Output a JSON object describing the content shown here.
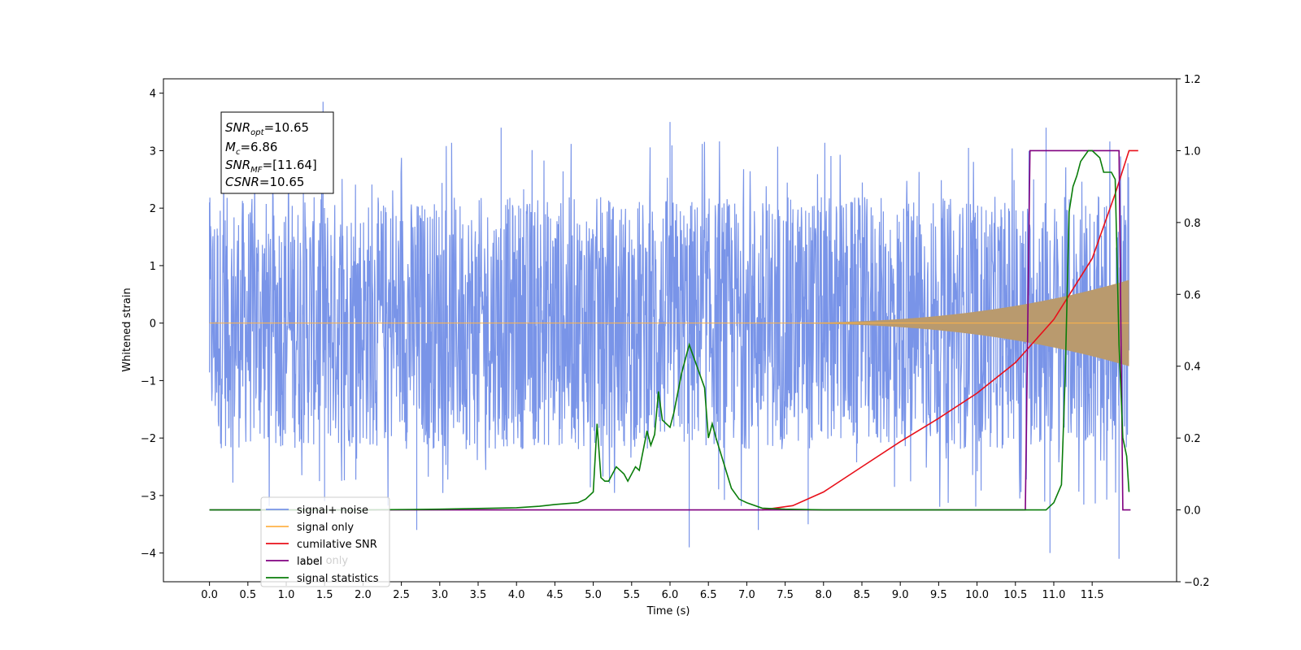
{
  "chart_data": {
    "type": "line",
    "xlabel": "Time (s)",
    "ylabel": "Whitened strain",
    "xlim": [
      -0.6,
      12.6
    ],
    "ylim": [
      -4.5,
      4.25
    ],
    "y2lim": [
      -0.2,
      1.2
    ],
    "xticks": [
      0.0,
      0.5,
      1.0,
      1.5,
      2.0,
      2.5,
      3.0,
      3.5,
      4.0,
      4.5,
      5.0,
      5.5,
      6.0,
      6.5,
      7.0,
      7.5,
      8.0,
      8.5,
      9.0,
      9.5,
      10.0,
      10.5,
      11.0,
      11.5
    ],
    "xtick_labels": [
      "0.0",
      "0.5",
      "1.0",
      "1.5",
      "2.0",
      "2.5",
      "3.0",
      "3.5",
      "4.0",
      "4.5",
      "5.0",
      "5.5",
      "6.0",
      "6.5",
      "7.0",
      "7.5",
      "8.0",
      "8.5",
      "9.0",
      "9.5",
      "10.0",
      "10.5",
      "11.0",
      "11.5"
    ],
    "yticks": [
      -4,
      -3,
      -2,
      -1,
      0,
      1,
      2,
      3,
      4
    ],
    "ytick_labels": [
      "−4",
      "−3",
      "−2",
      "−1",
      "0",
      "1",
      "2",
      "3",
      "4"
    ],
    "y2ticks": [
      -0.2,
      0.0,
      0.2,
      0.4,
      0.6,
      0.8,
      1.0,
      1.2
    ],
    "y2tick_labels": [
      "−0.2",
      "0.0",
      "0.2",
      "0.4",
      "0.6",
      "0.8",
      "1.0",
      "1.2"
    ],
    "grid": false,
    "legend_position": "bottom-left",
    "textbox": {
      "lines": [
        {
          "main": "SNR",
          "sub": "opt",
          "rest": "=10.65"
        },
        {
          "main": "M",
          "sub": "c",
          "rest": "=6.86"
        },
        {
          "main": "SNR",
          "sub": "MF",
          "rest": "=[11.64]"
        },
        {
          "main": "CSNR",
          "sub": "",
          "rest": "=10.65"
        }
      ]
    },
    "series": [
      {
        "name": "signal+ noise",
        "axis": "left",
        "color": "#7994e8",
        "envelope_abs": 2.2,
        "peaks": [
          [
            0.0,
            2.1
          ],
          [
            1.48,
            3.85
          ],
          [
            1.5,
            -3.1
          ],
          [
            2.7,
            -3.6
          ],
          [
            3.8,
            3.4
          ],
          [
            6.0,
            3.5
          ],
          [
            6.25,
            -3.9
          ],
          [
            7.15,
            -3.6
          ],
          [
            7.8,
            -3.5
          ],
          [
            10.9,
            3.4
          ],
          [
            10.95,
            -4.0
          ],
          [
            11.85,
            -4.1
          ],
          [
            11.87,
            2.9
          ]
        ]
      },
      {
        "name": "signal only",
        "axis": "left",
        "color": "#ffb347",
        "fill_color": "#b99a6e",
        "chirp_start": 7.0,
        "chirp_end": 11.98,
        "peak_amp": 0.75
      },
      {
        "name": "cumilative SNR",
        "axis": "right",
        "color": "#e8101a",
        "x": [
          7.2,
          7.6,
          8.0,
          8.5,
          9.0,
          9.5,
          10.0,
          10.5,
          11.0,
          11.5,
          11.8,
          11.98,
          12.1
        ],
        "y": [
          0.0,
          0.012,
          0.05,
          0.12,
          0.19,
          0.255,
          0.325,
          0.41,
          0.53,
          0.7,
          0.88,
          1.0,
          1.0
        ]
      },
      {
        "name": "label",
        "axis": "right",
        "color": "#800080",
        "x": [
          0.0,
          10.63,
          10.69,
          11.85,
          11.9,
          12.0
        ],
        "y": [
          0.0,
          0.0,
          1.0,
          1.0,
          0.0,
          0.0
        ]
      },
      {
        "name": "signal statistics",
        "axis": "right",
        "color": "#0a7d0a",
        "x": [
          0.0,
          2.0,
          3.0,
          3.5,
          4.0,
          4.3,
          4.5,
          4.8,
          4.9,
          5.0,
          5.05,
          5.1,
          5.15,
          5.2,
          5.3,
          5.4,
          5.45,
          5.55,
          5.6,
          5.7,
          5.75,
          5.8,
          5.85,
          5.9,
          6.0,
          6.05,
          6.15,
          6.25,
          6.3,
          6.4,
          6.45,
          6.5,
          6.55,
          6.6,
          6.7,
          6.8,
          6.9,
          7.0,
          7.2,
          7.5,
          8.0,
          9.0,
          10.0,
          10.9,
          11.0,
          11.1,
          11.15,
          11.2,
          11.25,
          11.3,
          11.35,
          11.45,
          11.5,
          11.6,
          11.65,
          11.75,
          11.8,
          11.85,
          11.9,
          11.95,
          11.98
        ],
        "y": [
          0.0,
          0.0,
          0.002,
          0.004,
          0.006,
          0.01,
          0.015,
          0.02,
          0.03,
          0.05,
          0.24,
          0.09,
          0.08,
          0.08,
          0.12,
          0.1,
          0.08,
          0.12,
          0.11,
          0.22,
          0.18,
          0.21,
          0.33,
          0.25,
          0.23,
          0.27,
          0.38,
          0.46,
          0.43,
          0.37,
          0.34,
          0.2,
          0.24,
          0.2,
          0.13,
          0.06,
          0.03,
          0.02,
          0.005,
          0.002,
          0.0,
          0.0,
          0.0,
          0.0,
          0.02,
          0.07,
          0.38,
          0.83,
          0.9,
          0.93,
          0.97,
          1.0,
          1.0,
          0.98,
          0.94,
          0.94,
          0.92,
          0.46,
          0.2,
          0.15,
          0.05
        ]
      },
      {
        "name": "label only",
        "axis": "right",
        "color": "#c8c8c8",
        "legend_only": true
      }
    ],
    "legend_order": [
      "signal+ noise",
      "signal only",
      "cumilative SNR",
      "label",
      "signal statistics"
    ],
    "legend_ghost": "label only"
  }
}
